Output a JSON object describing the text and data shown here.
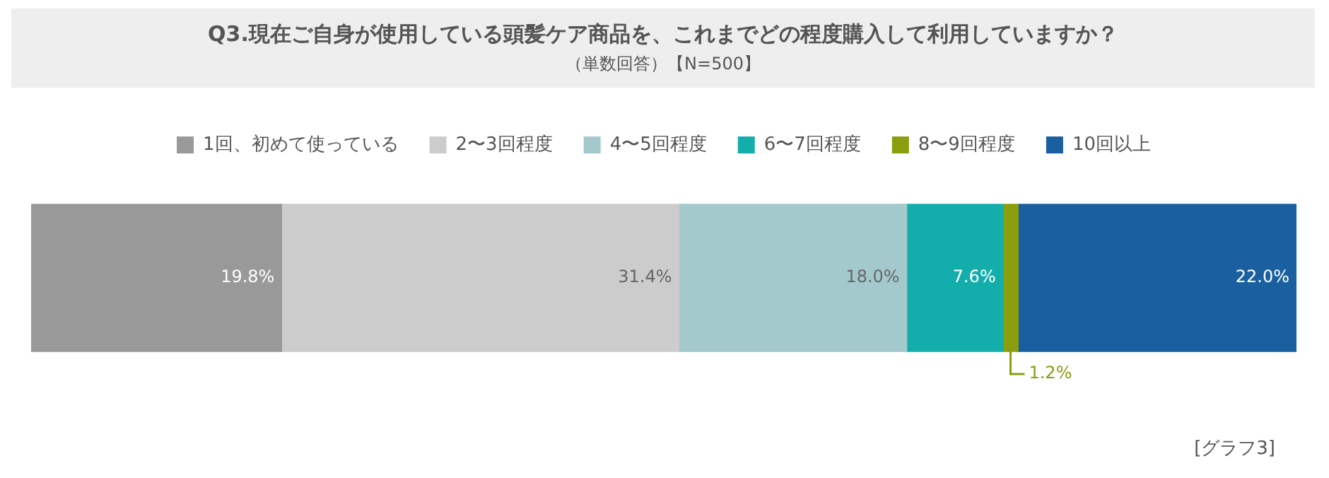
{
  "chart_data": {
    "type": "bar",
    "orientation": "horizontal",
    "stacked": true,
    "title": "Q3.現在ご自身が使用している頭髪ケア商品を、これまでどの程度購入して利用していますか？",
    "subtitle": "（単数回答）【N=500】",
    "categories": [
      null
    ],
    "xlim": [
      0,
      100
    ],
    "tick_labels": false,
    "grid": false,
    "legend": "top",
    "series": [
      {
        "name": "1回、初めて使っている",
        "color": "#999999",
        "values": [
          19.8
        ],
        "value_labels": [
          "19.8%"
        ]
      },
      {
        "name": "2〜3回程度",
        "color": "#cccccc",
        "values": [
          31.4
        ],
        "value_labels": [
          "31.4%"
        ]
      },
      {
        "name": "4〜5回程度",
        "color": "#a3c9cd",
        "values": [
          18.0
        ],
        "value_labels": [
          "18.0%"
        ]
      },
      {
        "name": "6〜7回程度",
        "color": "#13aeac",
        "values": [
          7.6
        ],
        "value_labels": [
          "7.6%"
        ]
      },
      {
        "name": "8〜9回程度",
        "color": "#8a9e0f",
        "values": [
          1.2
        ],
        "value_labels": [
          "1.2%"
        ]
      },
      {
        "name": "10回以上",
        "color": "#1a60a0",
        "values": [
          22.0
        ],
        "value_labels": [
          "22.0%"
        ]
      }
    ],
    "annotations": [
      "[グラフ3]"
    ]
  }
}
